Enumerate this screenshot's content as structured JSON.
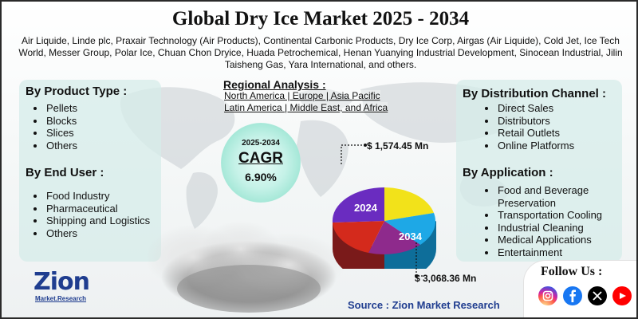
{
  "title": "Global Dry Ice Market 2025 - 2034",
  "companies": "Air Liquide, Linde plc, Praxair Technology (Air Products), Continental Carbonic Products, Dry Ice Corp, Airgas (Air Liquide), Cold Jet, Ice Tech World, Messer Group, Polar Ice, Chuan Chon Dryice, Huada Petrochemical, Henan Yuanying Industrial Development, Sinocean Industrial, Jilin Taisheng Gas, Yara International, and others.",
  "product_type": {
    "title": "By Product Type :",
    "items": [
      "Pellets",
      "Blocks",
      "Slices",
      "Others"
    ]
  },
  "end_user": {
    "title": "By End User :",
    "items": [
      "Food Industry",
      "Pharmaceutical",
      "Shipping and Logistics",
      "Others"
    ]
  },
  "regional": {
    "title": "Regional Analysis :",
    "line1": "North America | Europe | Asia Pacific",
    "line2": "Latin America | Middle East, and Africa"
  },
  "distribution": {
    "title": "By Distribution Channel :",
    "items": [
      "Direct Sales",
      "Distributors",
      "Retail Outlets",
      "Online Platforms"
    ]
  },
  "application": {
    "title": "By Application :",
    "items": [
      "Food and Beverage Preservation",
      "Transportation Cooling",
      "Industrial Cleaning",
      "Medical Applications",
      "Entertainment"
    ]
  },
  "cagr": {
    "years": "2025-2034",
    "label": "CAGR",
    "value": "6.90%"
  },
  "market": {
    "value_2024": "$ 1,574.45 Mn",
    "value_2034": "$ 3,068.36 Mn",
    "year_2024": "2024",
    "year_2034": "2034"
  },
  "logo": {
    "main": "Zion",
    "sub": "Market.Research"
  },
  "source": "Source : Zion Market Research",
  "follow": "Follow Us :",
  "social": [
    {
      "name": "instagram",
      "color": "#d6249f"
    },
    {
      "name": "facebook",
      "color": "#1877f2"
    },
    {
      "name": "x",
      "color": "#000000"
    },
    {
      "name": "youtube",
      "color": "#ff0000"
    }
  ],
  "colors": {
    "panel": "#d6ecea",
    "accent_blue": "#1f3d8f",
    "pie_yellow": "#f2e21a",
    "pie_purple": "#6a2cc0",
    "pie_red": "#d42a1c",
    "pie_cyan": "#1ea8e6",
    "pie_violet": "#8e2a8c"
  }
}
